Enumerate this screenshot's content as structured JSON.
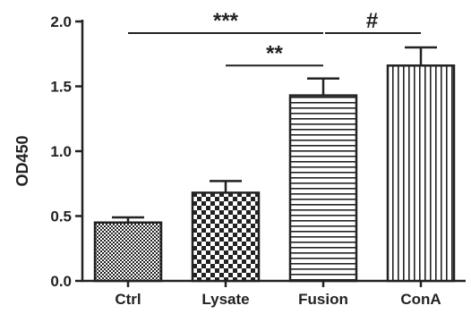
{
  "chart_data": {
    "type": "bar",
    "title": "",
    "xlabel": "",
    "ylabel": "OD450",
    "ylim": [
      0,
      2.0
    ],
    "yticks": [
      "0.0",
      "0.5",
      "1.0",
      "1.5",
      "2.0"
    ],
    "categories": [
      "Ctrl",
      "Lysate",
      "Fusion",
      "ConA"
    ],
    "values": [
      0.45,
      0.68,
      1.43,
      1.66
    ],
    "errors": [
      0.04,
      0.09,
      0.13,
      0.14
    ],
    "patterns": [
      "fine-checker",
      "coarse-checker",
      "horizontal-lines",
      "vertical-lines"
    ],
    "significance": [
      {
        "label": "***",
        "from": "Ctrl",
        "to": "Fusion",
        "level": 1.91
      },
      {
        "label": "#",
        "from": "Fusion",
        "to": "ConA",
        "level": 1.91
      },
      {
        "label": "**",
        "from": "Lysate",
        "to": "Fusion",
        "level": 1.66
      }
    ],
    "grid": false,
    "colors": {
      "ink": "#222222",
      "fill": "#ffffff"
    }
  }
}
